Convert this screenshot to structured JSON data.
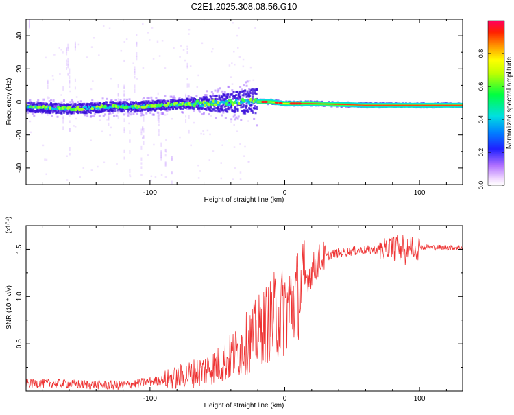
{
  "title": "C2E1.2025.308.08.56.G10",
  "chart_data": [
    {
      "type": "heatmap",
      "xlabel": "Height of straight line (km)",
      "ylabel": "Frequency (Hz)",
      "xlim": [
        -192,
        132
      ],
      "ylim": [
        -50,
        50
      ],
      "x_ticks": [
        -100,
        0,
        100
      ],
      "x_tick_labels": [
        "-100",
        "0",
        "100"
      ],
      "y_ticks": [
        -40,
        -20,
        0,
        20,
        40
      ],
      "y_tick_labels": [
        "-40",
        "-20",
        "0",
        "20",
        "40"
      ],
      "center_track": [
        {
          "x": -190,
          "y": -3
        },
        {
          "x": -170,
          "y": -4
        },
        {
          "x": -150,
          "y": -4
        },
        {
          "x": -130,
          "y": -3
        },
        {
          "x": -110,
          "y": -3
        },
        {
          "x": -90,
          "y": -2
        },
        {
          "x": -70,
          "y": -1
        },
        {
          "x": -50,
          "y": -1
        },
        {
          "x": -35,
          "y": 0
        },
        {
          "x": -20,
          "y": 0
        },
        {
          "x": -10,
          "y": 0
        },
        {
          "x": 0,
          "y": -1
        },
        {
          "x": 20,
          "y": -1
        },
        {
          "x": 60,
          "y": -2
        },
        {
          "x": 100,
          "y": -2
        },
        {
          "x": 132,
          "y": -2
        }
      ],
      "colorbar": {
        "label": "Normalized spectral amplitude",
        "range": [
          0.0,
          1.0
        ],
        "ticks": [
          0.0,
          0.2,
          0.4,
          0.6,
          0.8
        ],
        "tick_labels": [
          "0.0",
          "0.2",
          "0.4",
          "0.6",
          "0.8"
        ]
      }
    },
    {
      "type": "line",
      "xlabel": "Height of straight line (km)",
      "ylabel": "SNR (10 * v/v)",
      "y_multiplier": "(x10⁴)",
      "xlim": [
        -192,
        132
      ],
      "ylim": [
        0,
        1.75
      ],
      "x_ticks": [
        -100,
        0,
        100
      ],
      "x_tick_labels": [
        "-100",
        "0",
        "100"
      ],
      "y_ticks": [
        0.5,
        1.0,
        1.5
      ],
      "y_tick_labels": [
        "0.5",
        "1.0",
        "1.5"
      ],
      "series": [
        {
          "name": "SNR",
          "color": "#ee3333",
          "trend": [
            {
              "x": -192,
              "y": 0.08
            },
            {
              "x": -170,
              "y": 0.08
            },
            {
              "x": -150,
              "y": 0.07
            },
            {
              "x": -120,
              "y": 0.06
            },
            {
              "x": -100,
              "y": 0.1
            },
            {
              "x": -80,
              "y": 0.14
            },
            {
              "x": -60,
              "y": 0.22
            },
            {
              "x": -45,
              "y": 0.3
            },
            {
              "x": -35,
              "y": 0.42
            },
            {
              "x": -25,
              "y": 0.55
            },
            {
              "x": -15,
              "y": 0.7
            },
            {
              "x": -5,
              "y": 0.8
            },
            {
              "x": 5,
              "y": 0.92
            },
            {
              "x": 15,
              "y": 1.15
            },
            {
              "x": 25,
              "y": 1.38
            },
            {
              "x": 35,
              "y": 1.45
            },
            {
              "x": 50,
              "y": 1.48
            },
            {
              "x": 70,
              "y": 1.5
            },
            {
              "x": 90,
              "y": 1.53
            },
            {
              "x": 110,
              "y": 1.52
            },
            {
              "x": 132,
              "y": 1.52
            }
          ]
        }
      ]
    }
  ]
}
